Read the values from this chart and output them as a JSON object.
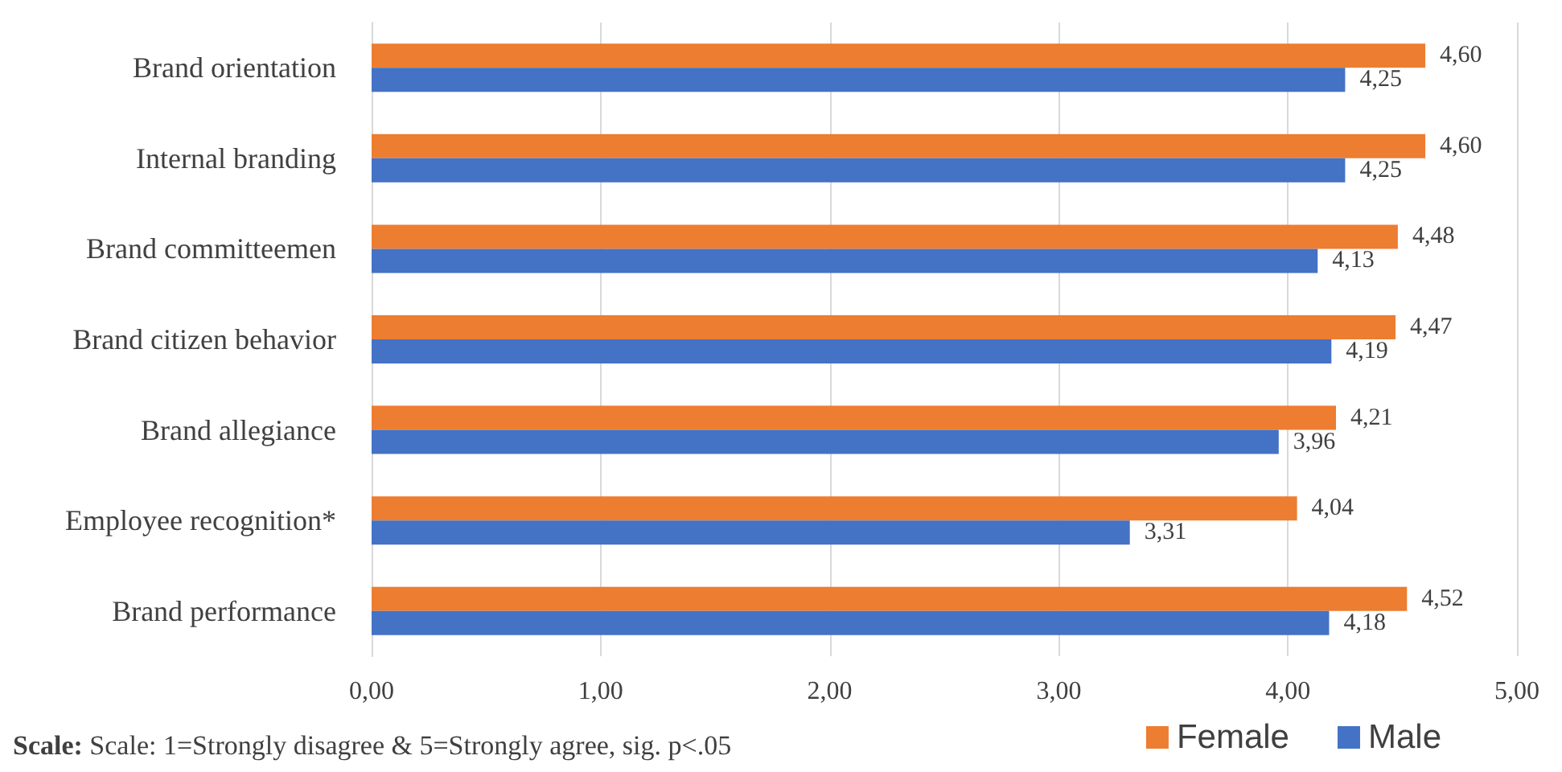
{
  "chart_data": {
    "type": "bar",
    "orientation": "horizontal",
    "categories": [
      "Brand orientation",
      "Internal branding",
      "Brand committeemen",
      "Brand citizen behavior",
      "Brand allegiance",
      "Employee recognition*",
      "Brand performance"
    ],
    "series": [
      {
        "name": "Female",
        "color": "#ed7d31",
        "values": [
          4.6,
          4.6,
          4.48,
          4.47,
          4.21,
          4.04,
          4.52
        ],
        "value_labels": [
          "4,60",
          "4,60",
          "4,48",
          "4,47",
          "4,21",
          "4,04",
          "4,52"
        ]
      },
      {
        "name": "Male",
        "color": "#4472c4",
        "values": [
          4.25,
          4.25,
          4.13,
          4.19,
          3.96,
          3.31,
          4.18
        ],
        "value_labels": [
          "4,25",
          "4,25",
          "4,13",
          "4,19",
          "3,96",
          "3,31",
          "4,18"
        ]
      }
    ],
    "xlim": [
      0,
      5
    ],
    "xticks": [
      {
        "value": 0,
        "label": "0,00"
      },
      {
        "value": 1,
        "label": "1,00"
      },
      {
        "value": 2,
        "label": "2,00"
      },
      {
        "value": 3,
        "label": "3,00"
      },
      {
        "value": 4,
        "label": "4,00"
      },
      {
        "value": 5,
        "label": "5,00"
      }
    ],
    "grid": "x",
    "legend": "bottom right",
    "annotations": [
      "Scale: Scale: 1=Strongly disagree & 5=Strongly agree, sig. p<.05"
    ]
  }
}
